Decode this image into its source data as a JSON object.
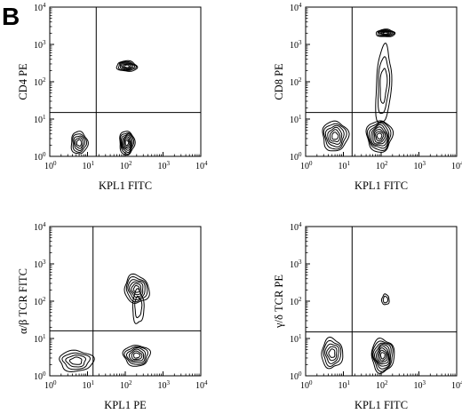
{
  "figure": {
    "panel_letter": "B"
  },
  "chart_data": [
    {
      "type": "contour",
      "xlabel": "KPL1 FITC",
      "ylabel": "CD4 PE",
      "xscale": "log",
      "yscale": "log",
      "xlim": [
        1,
        10000
      ],
      "ylim": [
        1,
        10000
      ],
      "gate": {
        "x": 17,
        "y": 15
      },
      "populations": [
        {
          "cx": 110,
          "cy": 260,
          "rx": 0.27,
          "ry": 0.14,
          "rings": 6,
          "tilt": 0.05
        },
        {
          "cx": 6,
          "cy": 2.3,
          "rx": 0.22,
          "ry": 0.3,
          "rings": 5,
          "tilt": 0
        },
        {
          "cx": 110,
          "cy": 2.3,
          "rx": 0.2,
          "ry": 0.32,
          "rings": 7,
          "tilt": 0
        }
      ]
    },
    {
      "type": "contour",
      "xlabel": "KPL1 FITC",
      "ylabel": "CD8 PE",
      "xscale": "log",
      "yscale": "log",
      "xlim": [
        1,
        10000
      ],
      "ylim": [
        1,
        10000
      ],
      "gate": {
        "x": 17,
        "y": 15
      },
      "populations": [
        {
          "cx": 130,
          "cy": 2000,
          "rx": 0.25,
          "ry": 0.1,
          "rings": 6,
          "tilt": 0
        },
        {
          "cx": 115,
          "cy": 80,
          "rx": 0.2,
          "ry": 1.05,
          "rings": 3,
          "tilt": 0.05
        },
        {
          "cx": 6,
          "cy": 3.5,
          "rx": 0.34,
          "ry": 0.4,
          "rings": 6,
          "tilt": 0
        },
        {
          "cx": 90,
          "cy": 3.5,
          "rx": 0.34,
          "ry": 0.42,
          "rings": 8,
          "tilt": 0
        }
      ]
    },
    {
      "type": "contour",
      "xlabel": "KPL1 PE",
      "ylabel": "α/β TCR FITC",
      "xscale": "log",
      "yscale": "log",
      "xlim": [
        1,
        10000
      ],
      "ylim": [
        1,
        10000
      ],
      "gate": {
        "x": 14,
        "y": 16
      },
      "populations": [
        {
          "cx": 200,
          "cy": 210,
          "rx": 0.32,
          "ry": 0.38,
          "rings": 6,
          "tilt": -0.3
        },
        {
          "cx": 220,
          "cy": 70,
          "rx": 0.15,
          "ry": 0.45,
          "rings": 2,
          "tilt": 0
        },
        {
          "cx": 5,
          "cy": 2.5,
          "rx": 0.45,
          "ry": 0.28,
          "rings": 4,
          "tilt": 0
        },
        {
          "cx": 200,
          "cy": 3.5,
          "rx": 0.35,
          "ry": 0.28,
          "rings": 6,
          "tilt": 0
        }
      ]
    },
    {
      "type": "contour",
      "xlabel": "KPL1 FITC",
      "ylabel": "γ/δ TCR PE",
      "xscale": "log",
      "yscale": "log",
      "xlim": [
        1,
        10000
      ],
      "ylim": [
        1,
        10000
      ],
      "gate": {
        "x": 17,
        "y": 15
      },
      "populations": [
        {
          "cx": 130,
          "cy": 110,
          "rx": 0.1,
          "ry": 0.14,
          "rings": 2,
          "tilt": 0
        },
        {
          "cx": 5,
          "cy": 4,
          "rx": 0.28,
          "ry": 0.4,
          "rings": 5,
          "tilt": 0
        },
        {
          "cx": 110,
          "cy": 3.5,
          "rx": 0.3,
          "ry": 0.45,
          "rings": 8,
          "tilt": 0
        }
      ]
    }
  ]
}
